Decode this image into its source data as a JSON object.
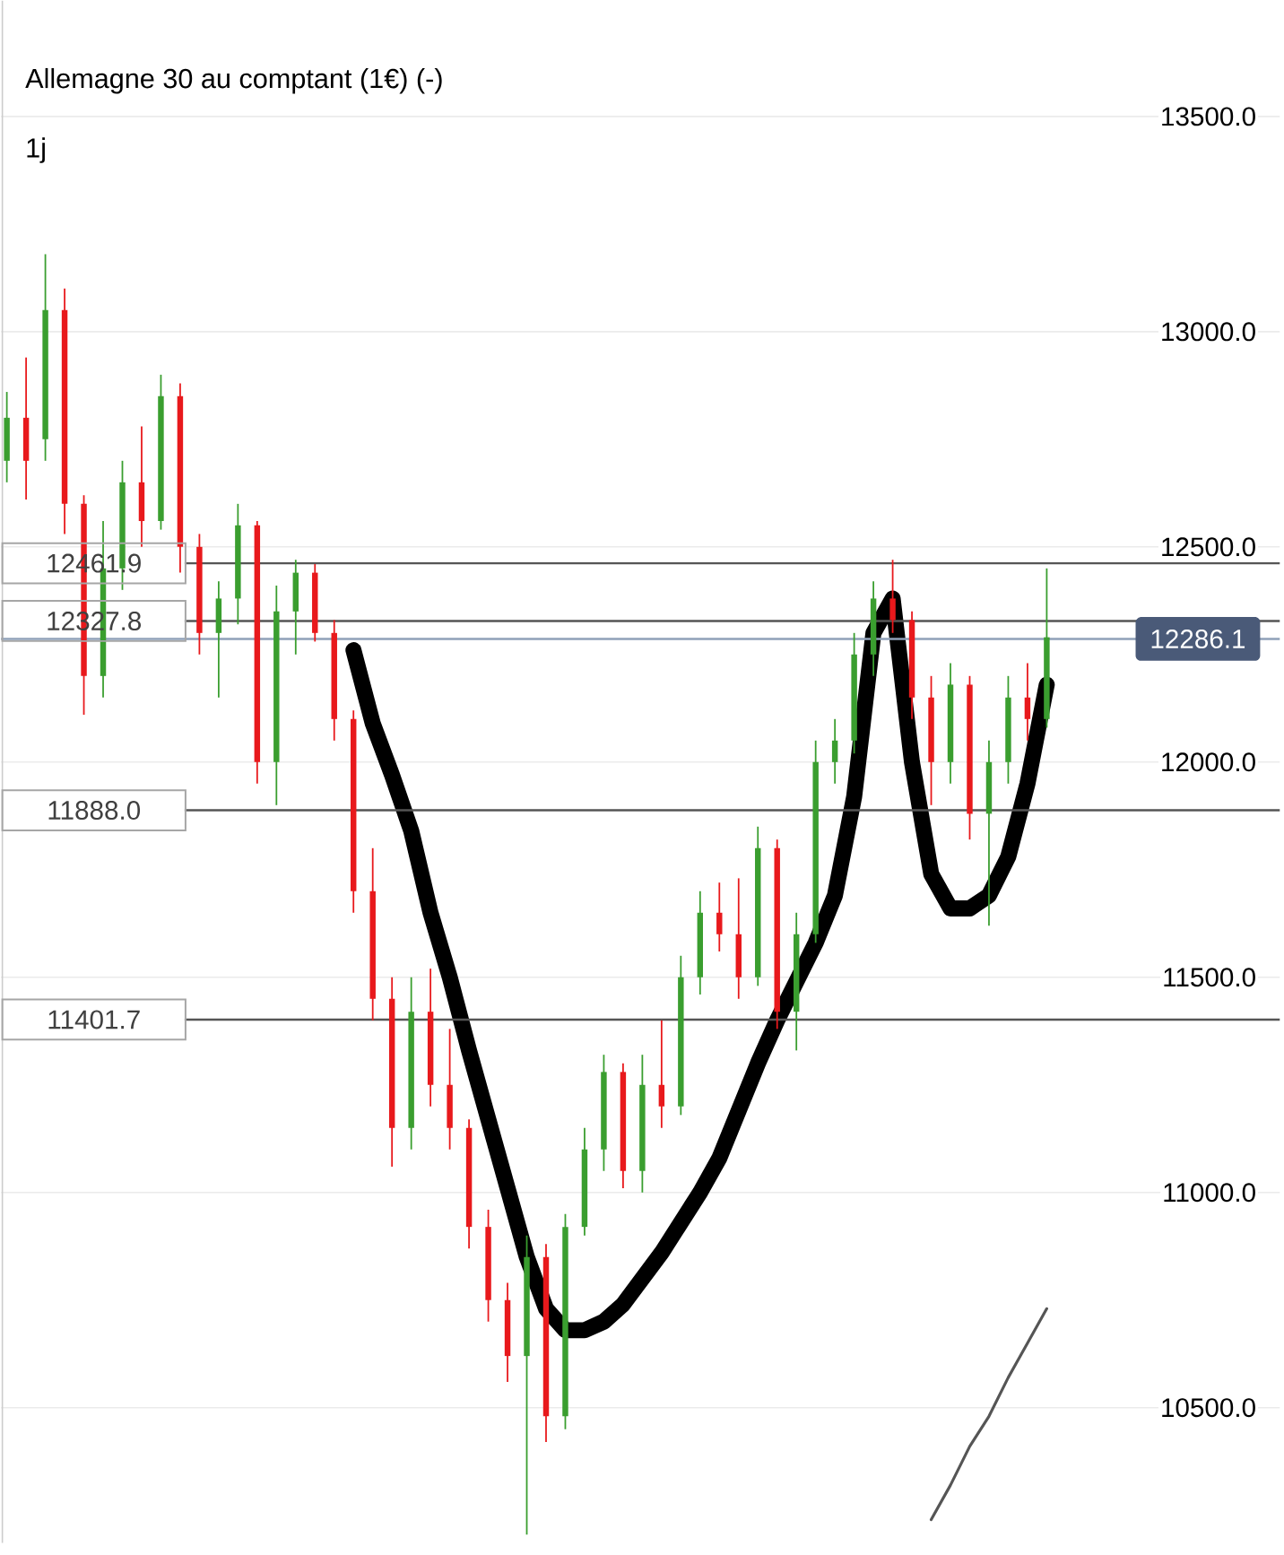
{
  "chart_data": {
    "type": "candlestick",
    "title": "Allemagne 30 au comptant (1€) (-)",
    "subtitle": "1j",
    "categories": [
      null,
      null,
      null,
      null,
      null,
      null,
      null,
      null,
      null,
      null,
      null,
      null,
      null,
      null,
      null,
      null,
      null,
      null,
      null,
      null,
      null,
      null,
      null,
      null,
      null,
      null,
      null,
      null,
      null,
      null,
      null,
      null,
      null,
      null,
      null,
      null,
      null,
      null,
      null,
      null,
      null,
      null,
      null,
      null,
      null,
      null,
      null,
      null,
      null,
      null,
      null,
      null,
      null,
      null,
      null
    ],
    "ohlc": [
      [
        12700,
        12860,
        12650,
        12800
      ],
      [
        12800,
        12940,
        12610,
        12700
      ],
      [
        12750,
        13180,
        12700,
        13050
      ],
      [
        13050,
        13100,
        12530,
        12600
      ],
      [
        12600,
        12620,
        12110,
        12200
      ],
      [
        12200,
        12560,
        12150,
        12450
      ],
      [
        12450,
        12700,
        12400,
        12650
      ],
      [
        12650,
        12780,
        12500,
        12560
      ],
      [
        12560,
        12900,
        12540,
        12850
      ],
      [
        12850,
        12880,
        12440,
        12500
      ],
      [
        12500,
        12530,
        12250,
        12300
      ],
      [
        12300,
        12420,
        12150,
        12380
      ],
      [
        12380,
        12600,
        12320,
        12550
      ],
      [
        12550,
        12560,
        11950,
        12000
      ],
      [
        12000,
        12410,
        11900,
        12350
      ],
      [
        12350,
        12470,
        12250,
        12440
      ],
      [
        12440,
        12460,
        12280,
        12300
      ],
      [
        12300,
        12330,
        12050,
        12100
      ],
      [
        12100,
        12120,
        11650,
        11700
      ],
      [
        11700,
        11800,
        11400,
        11450
      ],
      [
        11450,
        11500,
        11060,
        11150
      ],
      [
        11150,
        11500,
        11100,
        11420
      ],
      [
        11420,
        11520,
        11200,
        11250
      ],
      [
        11250,
        11380,
        11100,
        11150
      ],
      [
        11150,
        11170,
        10870,
        10920
      ],
      [
        10920,
        10960,
        10700,
        10750
      ],
      [
        10750,
        10790,
        10560,
        10620
      ],
      [
        10620,
        10900,
        10205,
        10850
      ],
      [
        10850,
        10880,
        10420,
        10480
      ],
      [
        10480,
        10950,
        10450,
        10920
      ],
      [
        10920,
        11150,
        10900,
        11100
      ],
      [
        11100,
        11320,
        11050,
        11280
      ],
      [
        11280,
        11300,
        11010,
        11050
      ],
      [
        11050,
        11320,
        11000,
        11250
      ],
      [
        11250,
        11400,
        11150,
        11200
      ],
      [
        11200,
        11550,
        11180,
        11500
      ],
      [
        11500,
        11700,
        11460,
        11650
      ],
      [
        11650,
        11720,
        11560,
        11600
      ],
      [
        11600,
        11730,
        11450,
        11500
      ],
      [
        11500,
        11850,
        11480,
        11800
      ],
      [
        11800,
        11820,
        11380,
        11420
      ],
      [
        11420,
        11650,
        11330,
        11600
      ],
      [
        11600,
        12050,
        11580,
        12000
      ],
      [
        12000,
        12100,
        11950,
        12050
      ],
      [
        12050,
        12300,
        12020,
        12250
      ],
      [
        12250,
        12420,
        12200,
        12380
      ],
      [
        12380,
        12470,
        12300,
        12330
      ],
      [
        12330,
        12350,
        12100,
        12150
      ],
      [
        12150,
        12200,
        11900,
        12000
      ],
      [
        12000,
        12230,
        11950,
        12180
      ],
      [
        12180,
        12200,
        11820,
        11880
      ],
      [
        11880,
        12050,
        11620,
        12000
      ],
      [
        12000,
        12200,
        11950,
        12150
      ],
      [
        12150,
        12230,
        12050,
        12100
      ],
      [
        12100,
        12450,
        12080,
        12290
      ]
    ],
    "colors": [
      "#3a9e2f",
      "#e8191c",
      "#3a9e2f",
      "#e8191c",
      "#e8191c",
      "#3a9e2f",
      "#3a9e2f",
      "#e8191c",
      "#3a9e2f",
      "#e8191c",
      "#e8191c",
      "#3a9e2f",
      "#3a9e2f",
      "#e8191c",
      "#3a9e2f",
      "#3a9e2f",
      "#e8191c",
      "#e8191c",
      "#e8191c",
      "#e8191c",
      "#e8191c",
      "#3a9e2f",
      "#e8191c",
      "#e8191c",
      "#e8191c",
      "#e8191c",
      "#e8191c",
      "#3a9e2f",
      "#e8191c",
      "#3a9e2f",
      "#3a9e2f",
      "#3a9e2f",
      "#e8191c",
      "#3a9e2f",
      "#e8191c",
      "#3a9e2f",
      "#3a9e2f",
      "#e8191c",
      "#e8191c",
      "#3a9e2f",
      "#e8191c",
      "#3a9e2f",
      "#3a9e2f",
      "#3a9e2f",
      "#3a9e2f",
      "#3a9e2f",
      "#e8191c",
      "#e8191c",
      "#e8191c",
      "#3a9e2f",
      "#e8191c",
      "#3a9e2f",
      "#3a9e2f",
      "#e8191c",
      "#3a9e2f"
    ],
    "series": [
      {
        "type": "line",
        "color": "#000000",
        "values": [
          null,
          null,
          null,
          null,
          null,
          null,
          null,
          null,
          null,
          null,
          null,
          null,
          null,
          null,
          null,
          null,
          null,
          null,
          12260,
          12090,
          11970,
          11840,
          11650,
          11500,
          11330,
          11170,
          11010,
          10850,
          10730,
          10680,
          10680,
          10700,
          10740,
          10800,
          10860,
          10930,
          11000,
          11080,
          11190,
          11300,
          11400,
          11490,
          11580,
          11690,
          11920,
          12300,
          12380,
          12000,
          11740,
          11660,
          11660,
          11690,
          11780,
          11950,
          12180
        ]
      },
      {
        "type": "line",
        "color": "#555555",
        "values": [
          null,
          null,
          null,
          null,
          null,
          null,
          null,
          null,
          null,
          null,
          null,
          null,
          null,
          null,
          null,
          null,
          null,
          null,
          null,
          null,
          null,
          null,
          null,
          null,
          null,
          null,
          null,
          null,
          null,
          null,
          null,
          null,
          null,
          null,
          null,
          null,
          null,
          null,
          null,
          null,
          null,
          null,
          null,
          null,
          null,
          null,
          null,
          null,
          10240,
          10320,
          10410,
          10480,
          10570,
          10650,
          10730
        ]
      }
    ],
    "ylim": [
      10186,
      13769
    ],
    "yticks": [
      {
        "value": 10500,
        "label": "10500.0"
      },
      {
        "value": 11000,
        "label": "11000.0"
      },
      {
        "value": 11500,
        "label": "11500.0"
      },
      {
        "value": 12000,
        "label": "12000.0"
      },
      {
        "value": 12500,
        "label": "12500.0"
      },
      {
        "value": 13000,
        "label": "13000.0"
      },
      {
        "value": 13500,
        "label": "13500.0"
      }
    ],
    "tick_labels": "y",
    "grid": "y",
    "ref_lines": [
      {
        "axis": "y",
        "value": 12461.9,
        "label": "12461.9",
        "color": "#555555"
      },
      {
        "axis": "y",
        "value": 12327.8,
        "label": "12327.8",
        "color": "#555555"
      },
      {
        "axis": "y",
        "value": 11888.0,
        "label": "11888.0",
        "color": "#555555"
      },
      {
        "axis": "y",
        "value": 11401.7,
        "label": "11401.7",
        "color": "#555555"
      },
      {
        "axis": "y",
        "value": 12286.1,
        "label": "12286.1",
        "color": "#8fa0b8"
      }
    ]
  }
}
